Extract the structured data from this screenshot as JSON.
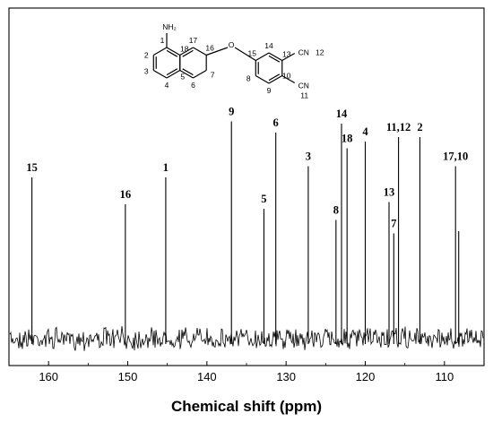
{
  "chart_data": {
    "type": "line",
    "title": "",
    "xlabel": "Chemical shift (ppm)",
    "ylabel": "",
    "xlim": [
      165,
      105
    ],
    "x_reversed": true,
    "x_ticks": [
      160,
      150,
      140,
      130,
      120,
      110
    ],
    "grid": false,
    "series": [
      {
        "peaks": [
          {
            "label": "15",
            "x": 162.1,
            "height": 0.72
          },
          {
            "label": "16",
            "x": 150.3,
            "height": 0.6
          },
          {
            "label": "1",
            "x": 145.2,
            "height": 0.72
          },
          {
            "label": "9",
            "x": 136.9,
            "height": 0.97
          },
          {
            "label": "5",
            "x": 132.8,
            "height": 0.58
          },
          {
            "label": "6",
            "x": 131.3,
            "height": 0.92
          },
          {
            "label": "3",
            "x": 127.2,
            "height": 0.77
          },
          {
            "label": "8",
            "x": 123.7,
            "height": 0.53
          },
          {
            "label": "14",
            "x": 123.0,
            "height": 0.96
          },
          {
            "label": "18",
            "x": 122.3,
            "height": 0.85
          },
          {
            "label": "4",
            "x": 120.0,
            "height": 0.88
          },
          {
            "label": "13",
            "x": 117.0,
            "height": 0.61
          },
          {
            "label": "7",
            "x": 116.4,
            "height": 0.47
          },
          {
            "label": "11,12",
            "x": 115.8,
            "height": 0.9
          },
          {
            "label": "2",
            "x": 113.1,
            "height": 0.9
          },
          {
            "label": "17,10",
            "x": 108.6,
            "height": 0.77
          }
        ],
        "minor_peaks": [
          {
            "x": 108.2,
            "height": 0.48
          }
        ]
      }
    ]
  },
  "structure": {
    "substituents": [
      "NH₂",
      "O",
      "CN",
      "CN"
    ],
    "atom_numbers": [
      "1",
      "2",
      "3",
      "4",
      "5",
      "6",
      "7",
      "8",
      "9",
      "10",
      "11",
      "12",
      "13",
      "14",
      "15",
      "16",
      "17",
      "18"
    ]
  }
}
